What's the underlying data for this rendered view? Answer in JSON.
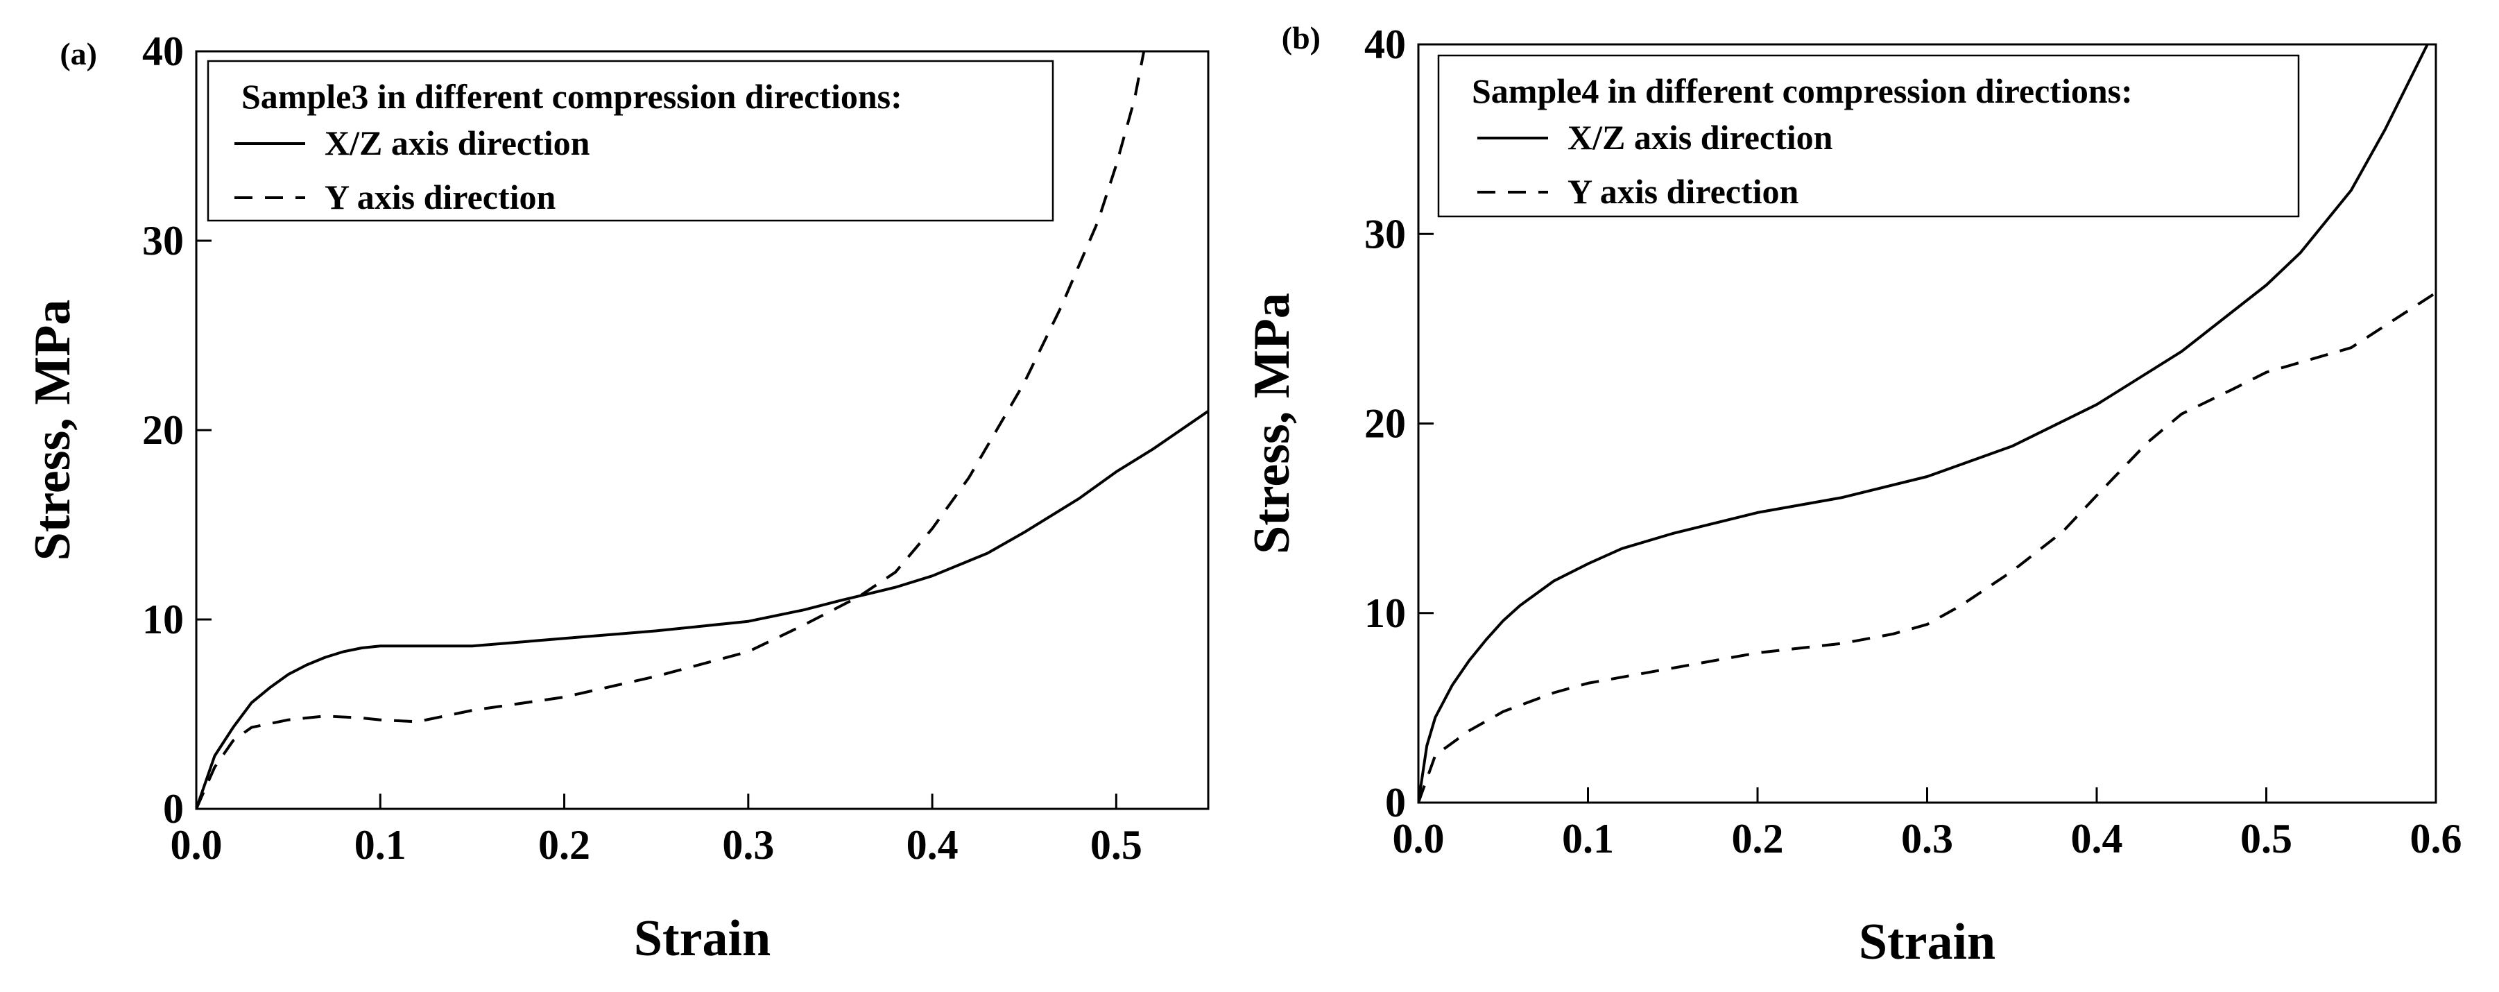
{
  "chart_data": [
    {
      "type": "line",
      "panel_label": "(a)",
      "title": "",
      "xlabel": "Strain",
      "ylabel": "Stress, MPa",
      "xlim": [
        0.0,
        0.55
      ],
      "ylim": [
        0,
        40
      ],
      "xticks": [
        0.0,
        0.1,
        0.2,
        0.3,
        0.4,
        0.5
      ],
      "xtick_labels": [
        "0.0",
        "0.1",
        "0.2",
        "0.3",
        "0.4",
        "0.5"
      ],
      "yticks": [
        0,
        10,
        20,
        30,
        40
      ],
      "ytick_labels": [
        "0",
        "10",
        "20",
        "30",
        "40"
      ],
      "grid": false,
      "legend_title": "Sample3 in different compression directions:",
      "legend_position": "top",
      "series": [
        {
          "name": "X/Z axis direction",
          "style": "solid",
          "x": [
            0.0,
            0.01,
            0.02,
            0.03,
            0.04,
            0.05,
            0.06,
            0.07,
            0.08,
            0.09,
            0.1,
            0.12,
            0.15,
            0.2,
            0.25,
            0.3,
            0.33,
            0.35,
            0.38,
            0.4,
            0.43,
            0.45,
            0.48,
            0.5,
            0.52,
            0.55
          ],
          "y": [
            0.0,
            2.8,
            4.3,
            5.6,
            6.4,
            7.1,
            7.6,
            8.0,
            8.3,
            8.5,
            8.6,
            8.6,
            8.6,
            9.0,
            9.4,
            9.9,
            10.5,
            11.0,
            11.7,
            12.3,
            13.5,
            14.6,
            16.4,
            17.8,
            19.0,
            21.0
          ]
        },
        {
          "name": "Y axis direction",
          "style": "dashed",
          "x": [
            0.0,
            0.01,
            0.02,
            0.03,
            0.05,
            0.07,
            0.09,
            0.1,
            0.12,
            0.15,
            0.2,
            0.25,
            0.3,
            0.33,
            0.36,
            0.38,
            0.4,
            0.42,
            0.45,
            0.47,
            0.49,
            0.5,
            0.51,
            0.515
          ],
          "y": [
            0.0,
            2.2,
            3.6,
            4.3,
            4.7,
            4.9,
            4.8,
            4.7,
            4.6,
            5.2,
            5.9,
            7.0,
            8.3,
            9.7,
            11.2,
            12.5,
            14.8,
            17.5,
            22.5,
            26.5,
            31.0,
            34.0,
            37.5,
            40.0
          ]
        }
      ]
    },
    {
      "type": "line",
      "panel_label": "(b)",
      "title": "",
      "xlabel": "Strain",
      "ylabel": "Stress, MPa",
      "xlim": [
        0.0,
        0.6
      ],
      "ylim": [
        0,
        40
      ],
      "xticks": [
        0.0,
        0.1,
        0.2,
        0.3,
        0.4,
        0.5,
        0.6
      ],
      "xtick_labels": [
        "0.0",
        "0.1",
        "0.2",
        "0.3",
        "0.4",
        "0.5",
        "0.6"
      ],
      "yticks": [
        0,
        10,
        20,
        30,
        40
      ],
      "ytick_labels": [
        "0",
        "10",
        "20",
        "30",
        "40"
      ],
      "grid": false,
      "legend_title": "Sample4 in different compression directions:",
      "legend_position": "top-left",
      "series": [
        {
          "name": "X/Z axis direction",
          "style": "solid",
          "x": [
            0.0,
            0.005,
            0.01,
            0.02,
            0.03,
            0.04,
            0.05,
            0.06,
            0.08,
            0.1,
            0.12,
            0.15,
            0.2,
            0.25,
            0.3,
            0.35,
            0.4,
            0.45,
            0.5,
            0.52,
            0.55,
            0.57,
            0.595
          ],
          "y": [
            0.0,
            3.0,
            4.5,
            6.2,
            7.5,
            8.6,
            9.6,
            10.4,
            11.7,
            12.6,
            13.4,
            14.2,
            15.3,
            16.1,
            17.2,
            18.8,
            21.0,
            23.8,
            27.3,
            29.0,
            32.3,
            35.5,
            40.0
          ]
        },
        {
          "name": "Y axis direction",
          "style": "dashed",
          "x": [
            0.0,
            0.01,
            0.03,
            0.05,
            0.08,
            0.1,
            0.15,
            0.2,
            0.25,
            0.28,
            0.3,
            0.32,
            0.35,
            0.38,
            0.4,
            0.43,
            0.45,
            0.48,
            0.5,
            0.55,
            0.6
          ],
          "y": [
            0.0,
            2.5,
            3.8,
            4.8,
            5.8,
            6.3,
            7.1,
            7.9,
            8.4,
            8.9,
            9.4,
            10.4,
            12.2,
            14.3,
            16.2,
            19.0,
            20.5,
            21.8,
            22.7,
            24.0,
            26.9
          ]
        }
      ]
    }
  ]
}
